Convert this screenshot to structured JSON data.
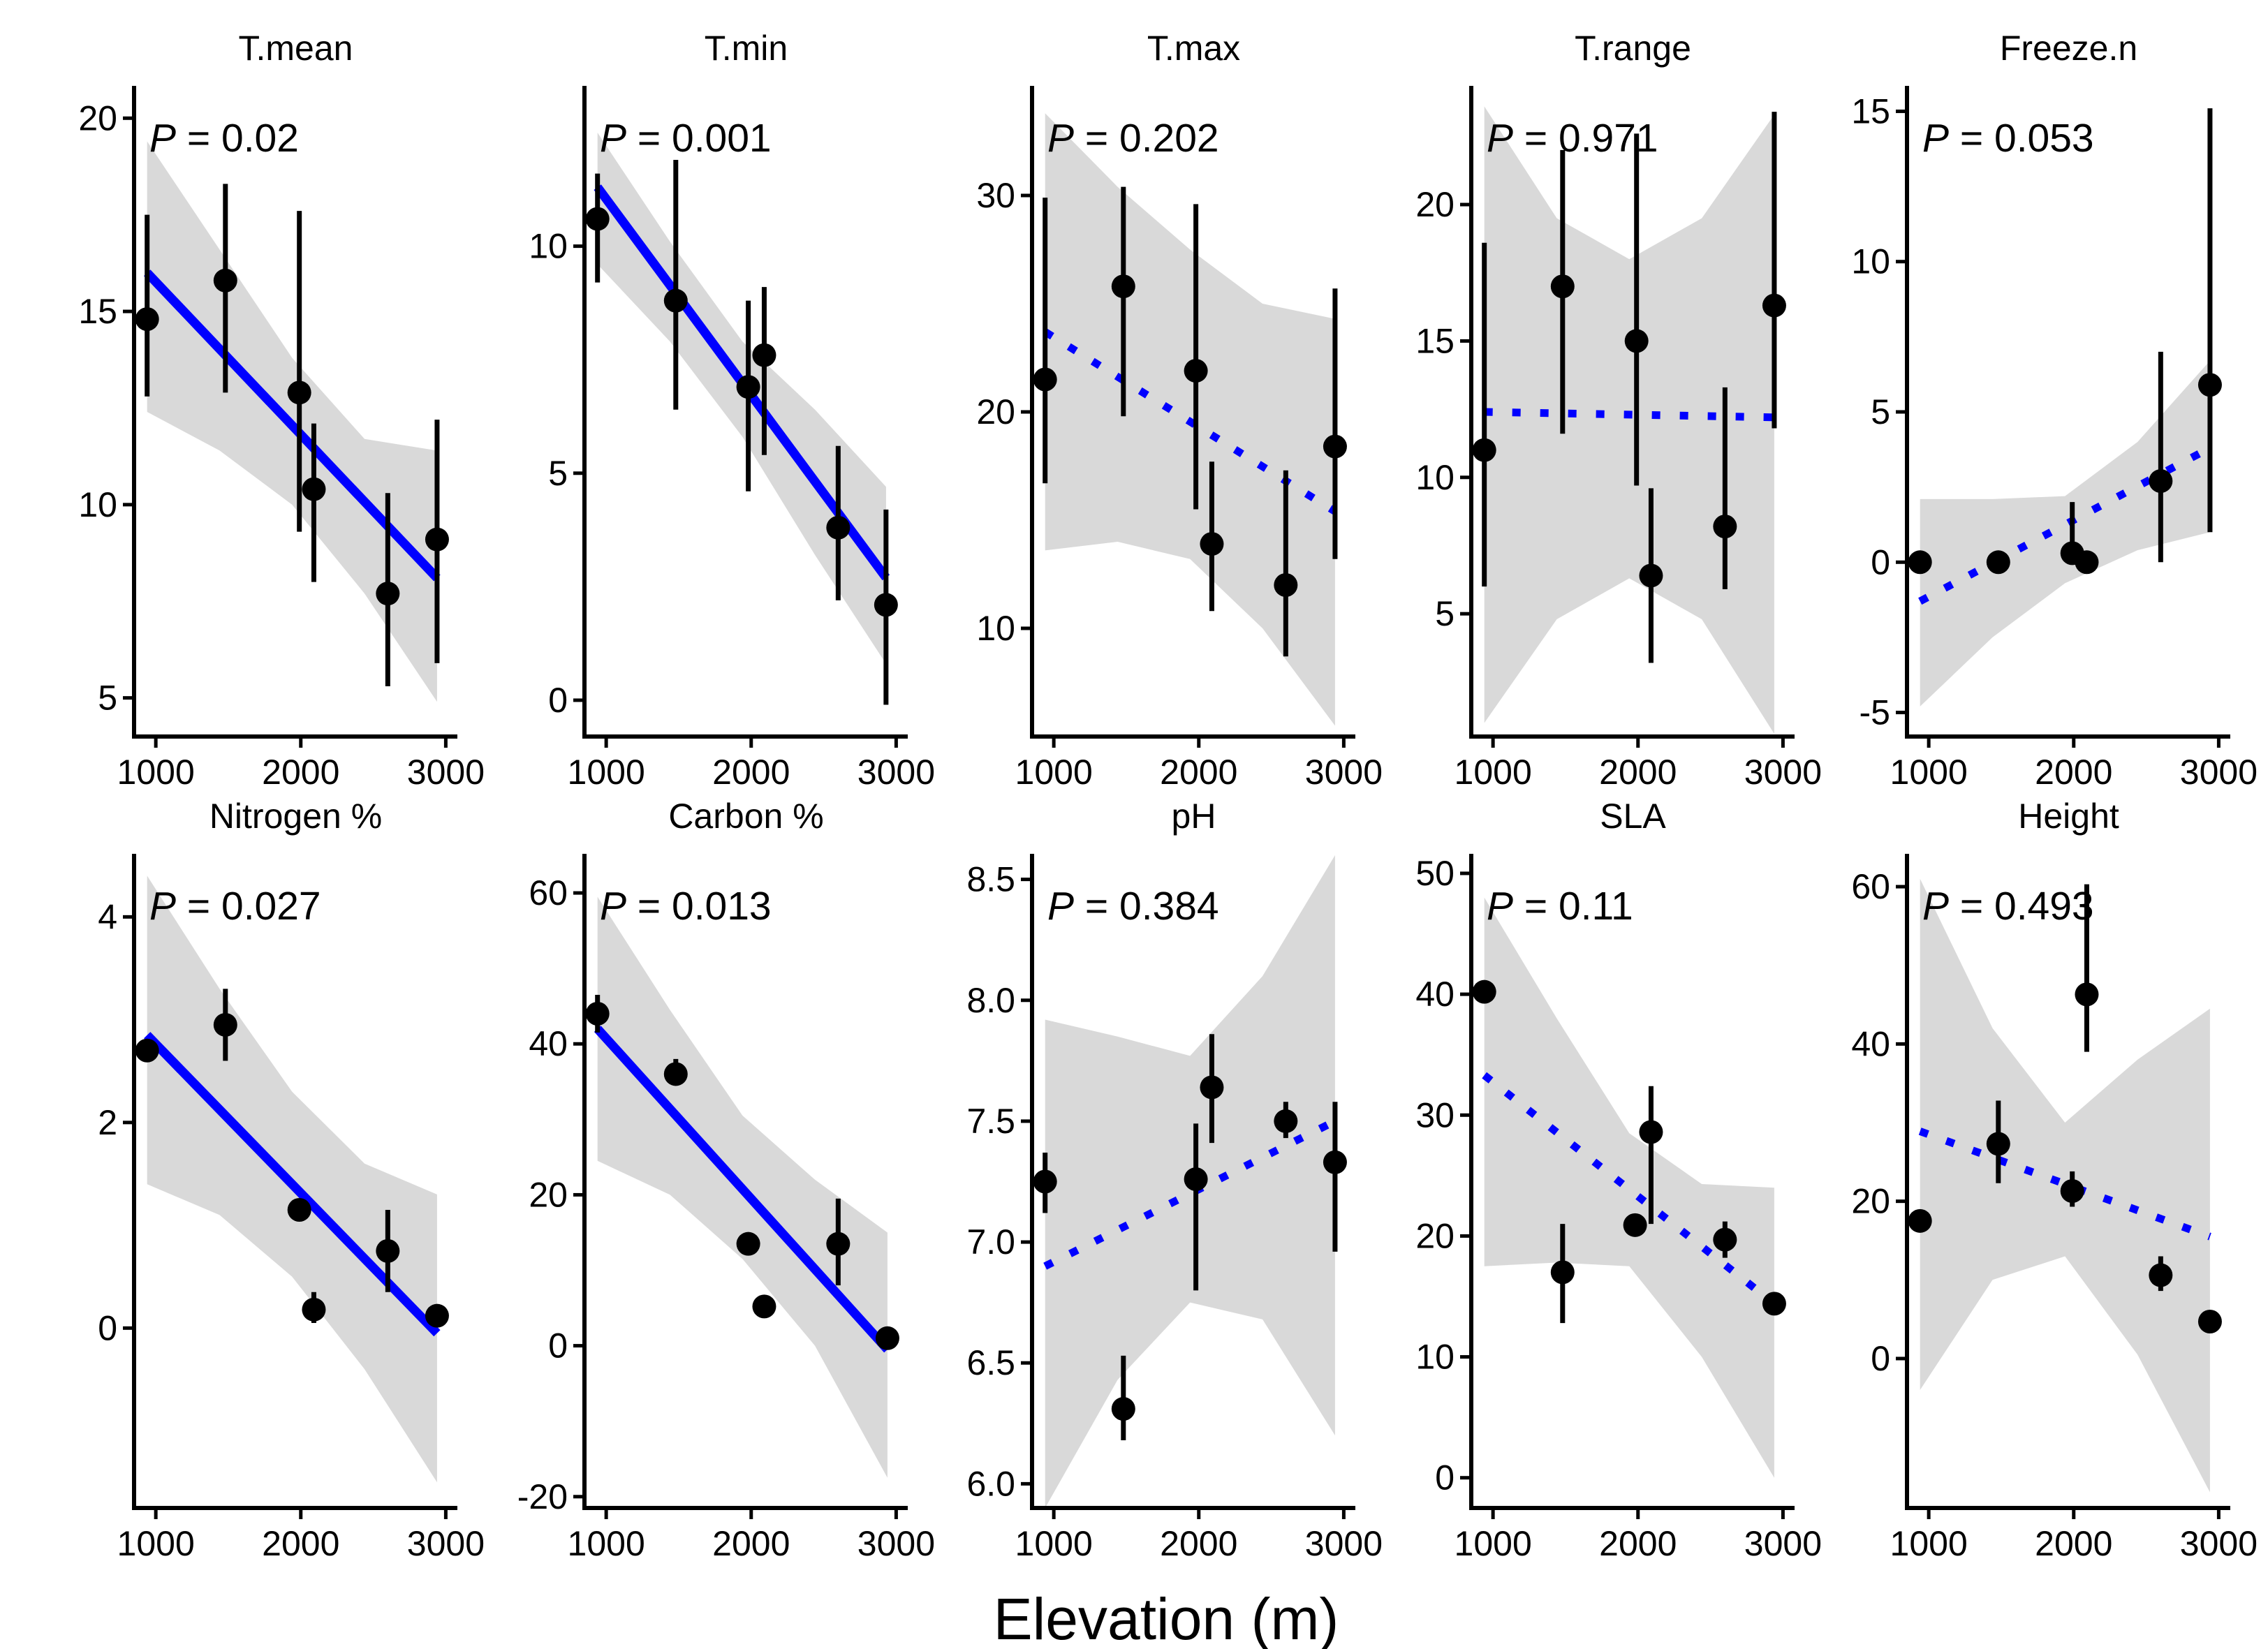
{
  "figure": {
    "xlabel": "Elevation (m)",
    "x_ticks": [
      1000,
      2000,
      3000
    ],
    "x_tick_labels": [
      "1000",
      "2000",
      "3000"
    ],
    "x_lim": [
      850,
      3080
    ],
    "p_prefix": "P",
    "ribbon_color": "#d9d9d9",
    "fit_color": "#0000ff",
    "point_color": "#000000"
  },
  "chart_data": [
    {
      "type": "scatter",
      "title": "T.mean",
      "p_label": " = 0.02",
      "significant": true,
      "ylim": [
        4,
        20.8
      ],
      "y_ticks": [
        5,
        10,
        15,
        20
      ],
      "y_tick_labels": [
        "5",
        "10",
        "15",
        "20"
      ],
      "points": [
        {
          "x": 940,
          "y": 14.8,
          "lo": 12.8,
          "hi": 17.5
        },
        {
          "x": 1480,
          "y": 15.8,
          "lo": 12.9,
          "hi": 18.3
        },
        {
          "x": 1990,
          "y": 12.9,
          "lo": 9.3,
          "hi": 17.6
        },
        {
          "x": 2090,
          "y": 10.4,
          "lo": 8.0,
          "hi": 12.1
        },
        {
          "x": 2600,
          "y": 7.7,
          "lo": 5.3,
          "hi": 10.3
        },
        {
          "x": 2940,
          "y": 9.1,
          "lo": 5.9,
          "hi": 12.2
        }
      ],
      "fit": {
        "x": [
          940,
          2940
        ],
        "y": [
          16.0,
          8.1
        ]
      },
      "ribbon": {
        "x": [
          940,
          1440,
          1940,
          2440,
          2940
        ],
        "lo": [
          12.4,
          11.4,
          10.0,
          7.7,
          4.9
        ],
        "hi": [
          19.4,
          16.6,
          13.8,
          11.7,
          11.4
        ]
      }
    },
    {
      "type": "scatter",
      "title": "T.min",
      "p_label": " = 0.001",
      "significant": true,
      "ylim": [
        -0.8,
        13.5
      ],
      "y_ticks": [
        0,
        5,
        10
      ],
      "y_tick_labels": [
        "0",
        "5",
        "10"
      ],
      "points": [
        {
          "x": 940,
          "y": 10.6,
          "lo": 9.2,
          "hi": 11.6
        },
        {
          "x": 1480,
          "y": 8.8,
          "lo": 6.4,
          "hi": 11.9
        },
        {
          "x": 1980,
          "y": 6.9,
          "lo": 4.6,
          "hi": 8.8
        },
        {
          "x": 2090,
          "y": 7.6,
          "lo": 5.4,
          "hi": 9.1
        },
        {
          "x": 2600,
          "y": 3.8,
          "lo": 2.2,
          "hi": 5.6
        },
        {
          "x": 2930,
          "y": 2.1,
          "lo": -0.1,
          "hi": 4.2
        }
      ],
      "fit": {
        "x": [
          940,
          2930
        ],
        "y": [
          11.3,
          2.7
        ]
      },
      "ribbon": {
        "x": [
          940,
          1440,
          1940,
          2440,
          2930
        ],
        "lo": [
          9.6,
          7.9,
          5.8,
          3.2,
          0.8
        ],
        "hi": [
          12.5,
          10.1,
          7.9,
          6.4,
          4.7
        ]
      }
    },
    {
      "type": "scatter",
      "title": "T.max",
      "p_label": " = 0.202",
      "significant": false,
      "ylim": [
        5,
        35
      ],
      "y_ticks": [
        10,
        20,
        30
      ],
      "y_tick_labels": [
        "10",
        "20",
        "30"
      ],
      "points": [
        {
          "x": 940,
          "y": 21.5,
          "lo": 16.7,
          "hi": 29.9
        },
        {
          "x": 1480,
          "y": 25.8,
          "lo": 19.8,
          "hi": 30.4
        },
        {
          "x": 1980,
          "y": 21.9,
          "lo": 15.5,
          "hi": 29.6
        },
        {
          "x": 2090,
          "y": 13.9,
          "lo": 10.8,
          "hi": 17.7
        },
        {
          "x": 2600,
          "y": 12.0,
          "lo": 8.7,
          "hi": 17.3
        },
        {
          "x": 2940,
          "y": 18.4,
          "lo": 13.2,
          "hi": 25.7
        }
      ],
      "fit": {
        "x": [
          940,
          2940
        ],
        "y": [
          23.7,
          15.4
        ]
      },
      "ribbon": {
        "x": [
          940,
          1440,
          1940,
          2440,
          2940
        ],
        "lo": [
          13.6,
          14.0,
          13.2,
          10.0,
          5.5
        ],
        "hi": [
          33.8,
          30.4,
          27.5,
          25.0,
          24.3
        ]
      }
    },
    {
      "type": "scatter",
      "title": "T.range",
      "p_label": " = 0.971",
      "significant": false,
      "ylim": [
        0.5,
        24.3
      ],
      "y_ticks": [
        5,
        10,
        15,
        20
      ],
      "y_tick_labels": [
        "5",
        "10",
        "15",
        "20"
      ],
      "points": [
        {
          "x": 940,
          "y": 11.0,
          "lo": 6.0,
          "hi": 18.6
        },
        {
          "x": 1480,
          "y": 17.0,
          "lo": 11.6,
          "hi": 22.0
        },
        {
          "x": 1990,
          "y": 15.0,
          "lo": 9.7,
          "hi": 22.6
        },
        {
          "x": 2090,
          "y": 6.4,
          "lo": 3.2,
          "hi": 9.6
        },
        {
          "x": 2600,
          "y": 8.2,
          "lo": 5.9,
          "hi": 13.3
        },
        {
          "x": 2940,
          "y": 16.3,
          "lo": 11.8,
          "hi": 23.4
        }
      ],
      "fit": {
        "x": [
          940,
          2940
        ],
        "y": [
          12.4,
          12.2
        ]
      },
      "ribbon": {
        "x": [
          940,
          1440,
          1940,
          2440,
          2940
        ],
        "lo": [
          1.0,
          4.8,
          6.3,
          4.8,
          0.6
        ],
        "hi": [
          23.6,
          19.5,
          18.0,
          19.5,
          23.3
        ]
      }
    },
    {
      "type": "scatter",
      "title": "Freeze.n",
      "p_label": " = 0.053",
      "significant": false,
      "ylim": [
        -5.8,
        15.8
      ],
      "y_ticks": [
        -5,
        0,
        5,
        10,
        15
      ],
      "y_tick_labels": [
        "-5",
        "0",
        "5",
        "10",
        "15"
      ],
      "points": [
        {
          "x": 940,
          "y": 0.0,
          "lo": 0.0,
          "hi": 0.0
        },
        {
          "x": 1480,
          "y": 0.0,
          "lo": 0.0,
          "hi": 0.0
        },
        {
          "x": 1990,
          "y": 0.3,
          "lo": 0.0,
          "hi": 2.0
        },
        {
          "x": 2090,
          "y": 0.0,
          "lo": 0.0,
          "hi": 0.0
        },
        {
          "x": 2600,
          "y": 2.7,
          "lo": 0.0,
          "hi": 7.0
        },
        {
          "x": 2940,
          "y": 5.9,
          "lo": 1.0,
          "hi": 15.1
        }
      ],
      "fit": {
        "x": [
          940,
          2940
        ],
        "y": [
          -1.3,
          3.8
        ]
      },
      "ribbon": {
        "x": [
          940,
          1440,
          1940,
          2440,
          2940
        ],
        "lo": [
          -4.8,
          -2.5,
          -0.7,
          0.4,
          1.0
        ],
        "hi": [
          2.1,
          2.1,
          2.2,
          4.0,
          6.7
        ]
      }
    },
    {
      "type": "scatter",
      "title": "Nitrogen %",
      "p_label": " = 0.027",
      "significant": true,
      "ylim": [
        -1.75,
        4.6
      ],
      "y_ticks": [
        0,
        2,
        4
      ],
      "y_tick_labels": [
        "0",
        "2",
        "4"
      ],
      "points": [
        {
          "x": 940,
          "y": 2.7,
          "lo": 2.6,
          "hi": 2.8
        },
        {
          "x": 1480,
          "y": 2.95,
          "lo": 2.6,
          "hi": 3.3
        },
        {
          "x": 1990,
          "y": 1.15,
          "lo": 1.05,
          "hi": 1.25
        },
        {
          "x": 2090,
          "y": 0.18,
          "lo": 0.05,
          "hi": 0.35
        },
        {
          "x": 2600,
          "y": 0.75,
          "lo": 0.35,
          "hi": 1.15
        },
        {
          "x": 2940,
          "y": 0.12,
          "lo": 0.05,
          "hi": 0.18
        }
      ],
      "fit": {
        "x": [
          940,
          2940
        ],
        "y": [
          2.85,
          -0.05
        ]
      },
      "ribbon": {
        "x": [
          940,
          1440,
          1940,
          2440,
          2940
        ],
        "lo": [
          1.4,
          1.1,
          0.5,
          -0.4,
          -1.5
        ],
        "hi": [
          4.4,
          3.3,
          2.3,
          1.6,
          1.3
        ]
      }
    },
    {
      "type": "scatter",
      "title": "Carbon %",
      "p_label": " = 0.013",
      "significant": true,
      "ylim": [
        -21.5,
        65
      ],
      "y_ticks": [
        -20,
        0,
        20,
        40,
        60
      ],
      "y_tick_labels": [
        "-20",
        "0",
        "20",
        "40",
        "60"
      ],
      "points": [
        {
          "x": 940,
          "y": 44.0,
          "lo": 41.5,
          "hi": 46.5
        },
        {
          "x": 1480,
          "y": 36.0,
          "lo": 34.5,
          "hi": 38.0
        },
        {
          "x": 1980,
          "y": 13.5,
          "lo": 13.5,
          "hi": 13.5
        },
        {
          "x": 2090,
          "y": 5.2,
          "lo": 5.2,
          "hi": 5.2
        },
        {
          "x": 2600,
          "y": 13.5,
          "lo": 8.0,
          "hi": 19.5
        },
        {
          "x": 2940,
          "y": 1.0,
          "lo": 1.0,
          "hi": 1.0
        }
      ],
      "fit": {
        "x": [
          940,
          2940
        ],
        "y": [
          42.0,
          -0.5
        ]
      },
      "ribbon": {
        "x": [
          940,
          1440,
          1940,
          2440,
          2940
        ],
        "lo": [
          24.5,
          20.0,
          11.5,
          0.0,
          -17.5
        ],
        "hi": [
          59.5,
          44.5,
          30.5,
          22.0,
          15.0
        ]
      }
    },
    {
      "type": "scatter",
      "title": "pH",
      "p_label": " = 0.384",
      "significant": false,
      "ylim": [
        5.9,
        8.6
      ],
      "y_ticks": [
        6.0,
        6.5,
        7.0,
        7.5,
        8.0,
        8.5
      ],
      "y_tick_labels": [
        "6.0",
        "6.5",
        "7.0",
        "7.5",
        "8.0",
        "8.5"
      ],
      "points": [
        {
          "x": 940,
          "y": 7.25,
          "lo": 7.12,
          "hi": 7.37
        },
        {
          "x": 1480,
          "y": 6.31,
          "lo": 6.18,
          "hi": 6.53
        },
        {
          "x": 1980,
          "y": 7.26,
          "lo": 6.8,
          "hi": 7.49
        },
        {
          "x": 2090,
          "y": 7.64,
          "lo": 7.41,
          "hi": 7.86
        },
        {
          "x": 2600,
          "y": 7.5,
          "lo": 7.43,
          "hi": 7.58
        },
        {
          "x": 2940,
          "y": 7.33,
          "lo": 6.96,
          "hi": 7.58
        }
      ],
      "fit": {
        "x": [
          940,
          2940
        ],
        "y": [
          6.9,
          7.5
        ]
      },
      "ribbon": {
        "x": [
          940,
          1440,
          1940,
          2440,
          2940
        ],
        "lo": [
          5.9,
          6.43,
          6.75,
          6.68,
          6.2
        ],
        "hi": [
          7.92,
          7.85,
          7.77,
          8.1,
          8.6
        ]
      }
    },
    {
      "type": "scatter",
      "title": "SLA",
      "p_label": " = 0.11",
      "significant": false,
      "ylim": [
        -2.5,
        51.5
      ],
      "y_ticks": [
        0,
        10,
        20,
        30,
        40,
        50
      ],
      "y_tick_labels": [
        "0",
        "10",
        "20",
        "30",
        "40",
        "50"
      ],
      "points": [
        {
          "x": 940,
          "y": 40.2,
          "lo": 40.2,
          "hi": 40.2
        },
        {
          "x": 1480,
          "y": 17.0,
          "lo": 12.8,
          "hi": 21.0
        },
        {
          "x": 1980,
          "y": 20.9,
          "lo": 20.9,
          "hi": 20.9
        },
        {
          "x": 2090,
          "y": 28.6,
          "lo": 21.0,
          "hi": 32.4
        },
        {
          "x": 2600,
          "y": 19.7,
          "lo": 18.2,
          "hi": 21.2
        },
        {
          "x": 2940,
          "y": 14.4,
          "lo": 14.4,
          "hi": 14.4
        }
      ],
      "fit": {
        "x": [
          940,
          2940
        ],
        "y": [
          33.3,
          14.4
        ]
      },
      "ribbon": {
        "x": [
          940,
          1440,
          1940,
          2440,
          2940
        ],
        "lo": [
          17.5,
          17.8,
          17.5,
          10.0,
          0.0
        ],
        "hi": [
          48.0,
          38.0,
          28.5,
          24.3,
          24.0
        ]
      }
    },
    {
      "type": "scatter",
      "title": "Height",
      "p_label": " = 0.493",
      "significant": false,
      "ylim": [
        -19,
        64
      ],
      "y_ticks": [
        0,
        20,
        40,
        60
      ],
      "y_tick_labels": [
        "0",
        "20",
        "40",
        "60"
      ],
      "points": [
        {
          "x": 940,
          "y": 17.5,
          "lo": 17.5,
          "hi": 17.5
        },
        {
          "x": 1480,
          "y": 27.3,
          "lo": 22.3,
          "hi": 32.8
        },
        {
          "x": 1990,
          "y": 21.3,
          "lo": 19.3,
          "hi": 23.8
        },
        {
          "x": 2090,
          "y": 46.3,
          "lo": 39.0,
          "hi": 60.3
        },
        {
          "x": 2600,
          "y": 10.6,
          "lo": 8.6,
          "hi": 13.0
        },
        {
          "x": 2940,
          "y": 4.7,
          "lo": 4.7,
          "hi": 4.7
        }
      ],
      "fit": {
        "x": [
          940,
          2940
        ],
        "y": [
          28.9,
          15.5
        ]
      },
      "ribbon": {
        "x": [
          940,
          1440,
          1940,
          2440,
          2940
        ],
        "lo": [
          -4.0,
          10.0,
          13.0,
          0.5,
          -17.0
        ],
        "hi": [
          61.0,
          42.0,
          30.0,
          38.0,
          44.5
        ]
      }
    }
  ]
}
